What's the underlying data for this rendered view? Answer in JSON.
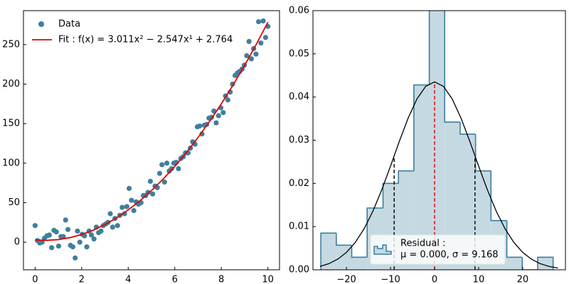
{
  "chart_data": [
    {
      "type": "scatter",
      "x": [
        0,
        0.1,
        0.2,
        0.3,
        0.4,
        0.51,
        0.61,
        0.71,
        0.81,
        0.91,
        1.01,
        1.11,
        1.21,
        1.31,
        1.41,
        1.52,
        1.62,
        1.72,
        1.82,
        1.92,
        2.02,
        2.12,
        2.22,
        2.32,
        2.42,
        2.53,
        2.63,
        2.73,
        2.83,
        2.93,
        3.03,
        3.13,
        3.23,
        3.33,
        3.43,
        3.54,
        3.64,
        3.74,
        3.84,
        3.94,
        4.04,
        4.14,
        4.24,
        4.34,
        4.44,
        4.55,
        4.65,
        4.75,
        4.85,
        4.95,
        5.05,
        5.15,
        5.25,
        5.35,
        5.45,
        5.56,
        5.66,
        5.76,
        5.86,
        5.96,
        6.06,
        6.16,
        6.26,
        6.36,
        6.46,
        6.57,
        6.67,
        6.77,
        6.87,
        6.97,
        7.07,
        7.17,
        7.27,
        7.37,
        7.47,
        7.58,
        7.68,
        7.78,
        7.88,
        7.98,
        8.08,
        8.18,
        8.28,
        8.38,
        8.48,
        8.59,
        8.69,
        8.79,
        8.89,
        8.99,
        9.09,
        9.19,
        9.29,
        9.39,
        9.49,
        9.6,
        9.7,
        9.8,
        9.9,
        10
      ],
      "series": [
        {
          "name": "Data",
          "color": "#3f7f9e",
          "values": [
            21,
            2,
            -1,
            0,
            5,
            8,
            9,
            -7,
            15,
            13,
            -5,
            7,
            7,
            28,
            16,
            -4,
            -6,
            -20,
            14,
            0,
            10,
            8,
            -6,
            14,
            9,
            4,
            19,
            12,
            14,
            21,
            23,
            25,
            36,
            19,
            30,
            21,
            34,
            44,
            36,
            45,
            68,
            53,
            40,
            51,
            48,
            50,
            59,
            59,
            63,
            77,
            61,
            71,
            69,
            87,
            98,
            76,
            100,
            90,
            93,
            100,
            101,
            93,
            106,
            108,
            113,
            113,
            119,
            127,
            124,
            146,
            147,
            137,
            148,
            149,
            157,
            158,
            166,
            151,
            160,
            170,
            164,
            185,
            180,
            190,
            200,
            211,
            214,
            216,
            219,
            224,
            236,
            254,
            232,
            245,
            238,
            279,
            252,
            280,
            259,
            273
          ]
        },
        {
          "name": "Fit : f(x) = 3.011x² − 2.547x¹ + 2.764",
          "type": "line",
          "color": "#e00000",
          "x": [
            0,
            0.5,
            1,
            1.5,
            2,
            2.5,
            3,
            3.5,
            4,
            4.5,
            5,
            5.5,
            6,
            6.5,
            7,
            7.5,
            8,
            8.5,
            9,
            9.5,
            10
          ],
          "values": [
            2.764,
            2.243,
            3.228,
            5.718,
            9.714,
            15.215,
            22.222,
            30.734,
            40.752,
            52.275,
            65.304,
            79.838,
            95.878,
            113.423,
            132.474,
            153.03,
            175.092,
            198.659,
            223.732,
            250.31,
            278.394
          ]
        }
      ],
      "xlim": [
        -0.5,
        10.5
      ],
      "ylim": [
        -35,
        293
      ],
      "xticks": [
        0,
        2,
        4,
        6,
        8,
        10
      ],
      "yticks": [
        0,
        50,
        100,
        150,
        200,
        250
      ],
      "legend": "upper left"
    },
    {
      "type": "histogram",
      "bins": [
        -25.8,
        -22.3,
        -18.8,
        -15.3,
        -11.7,
        -8.2,
        -4.7,
        -1.2,
        2.3,
        5.8,
        9.3,
        12.8,
        16.4,
        19.9,
        23.4,
        26.9
      ],
      "values": [
        0.0085,
        0.0057,
        0.0029,
        0.0143,
        0.02,
        0.0229,
        0.0428,
        0.063,
        0.0342,
        0.0314,
        0.0229,
        0.0114,
        0.0029,
        0,
        0.0029
      ],
      "color": "#c5d9e2",
      "edgecolor": "#3a7f9f",
      "curve": {
        "color": "#000000",
        "x": [
          -26,
          -24,
          -22,
          -20,
          -18,
          -16,
          -14,
          -12,
          -10,
          -8,
          -6,
          -4,
          -2,
          0,
          2,
          4,
          6,
          8,
          10,
          12,
          14,
          16,
          18,
          20,
          22,
          24,
          26,
          28
        ],
        "values": [
          0.00078,
          0.001414,
          0.002444,
          0.004027,
          0.006331,
          0.00949,
          0.013557,
          0.018475,
          0.024,
          0.029735,
          0.035121,
          0.039559,
          0.042487,
          0.04351,
          0.042487,
          0.039559,
          0.035121,
          0.029735,
          0.024,
          0.018475,
          0.013557,
          0.00949,
          0.006331,
          0.004027,
          0.002444,
          0.001414,
          0.00078,
          0.00041
        ]
      },
      "mean": 0,
      "std": 9.168,
      "mean_color": "#e00000",
      "std_color": "#000000",
      "legend_lines": [
        "Residual :",
        "μ = 0.000, σ = 9.168"
      ],
      "xlim": [
        -27.6,
        29.7
      ],
      "ylim": [
        0,
        0.06
      ],
      "xticks": [
        {
          "value": -20,
          "label": "−20"
        },
        {
          "value": -10,
          "label": "−10"
        },
        0,
        10,
        20
      ],
      "yticks": [
        {
          "value": 0,
          "label": "0.00"
        },
        {
          "value": 0.01,
          "label": "0.01"
        },
        {
          "value": 0.02,
          "label": "0.02"
        },
        {
          "value": 0.03,
          "label": "0.03"
        },
        {
          "value": 0.04,
          "label": "0.04"
        },
        {
          "value": 0.05,
          "label": "0.05"
        },
        {
          "value": 0.06,
          "label": "0.06"
        }
      ]
    }
  ]
}
